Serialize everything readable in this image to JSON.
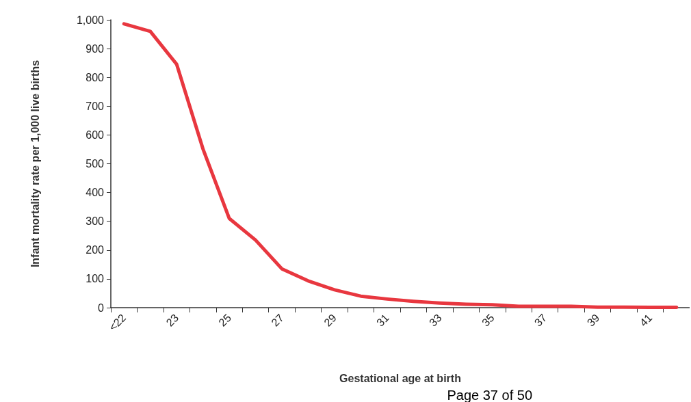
{
  "chart_data": {
    "type": "line",
    "xlabel": "Gestational age at birth",
    "ylabel": "Infant mortality rate per 1,000 live births",
    "categories": [
      "<22",
      null,
      "23",
      null,
      "25",
      null,
      "27",
      null,
      "29",
      null,
      "31",
      null,
      "33",
      null,
      "35",
      null,
      "37",
      null,
      "39",
      null,
      "41",
      null
    ],
    "series": [
      {
        "color": "#e8373f",
        "values": [
          986,
          960,
          846,
          552,
          310,
          235,
          135,
          93,
          62,
          40,
          30,
          22,
          16,
          12,
          10,
          5,
          5,
          5,
          2,
          2,
          1,
          1
        ]
      }
    ],
    "ylim": [
      0,
      1000
    ],
    "yticks": [
      0,
      100,
      200,
      300,
      400,
      500,
      600,
      700,
      800,
      900,
      {
        "value": 1000,
        "label": "1,000"
      }
    ],
    "grid": false,
    "marker": "none",
    "line_style": "solid",
    "annotations": [
      "Page 37 of 50"
    ]
  }
}
